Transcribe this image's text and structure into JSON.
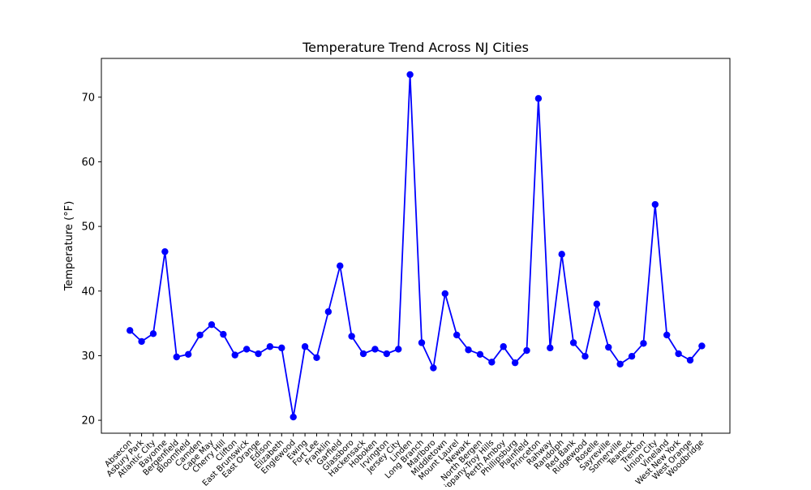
{
  "chart_data": {
    "type": "line",
    "title": "Temperature Trend Across NJ Cities",
    "xlabel": "",
    "ylabel": "Temperature (°F)",
    "ylim": [
      18,
      76
    ],
    "yticks": [
      20,
      30,
      40,
      50,
      60,
      70
    ],
    "grid": false,
    "marker": "circle",
    "colors": {
      "series": "#0000ff",
      "axis": "#000000",
      "background": "#ffffff"
    },
    "categories": [
      "Absecon",
      "Asbury Park",
      "Atlantic City",
      "Bayonne",
      "Bergenfield",
      "Bloomfield",
      "Camden",
      "Cape May",
      "Cherry Hill",
      "Clifton",
      "East Brunswick",
      "East Orange",
      "Edison",
      "Elizabeth",
      "Englewood",
      "Ewing",
      "Fort Lee",
      "Franklin",
      "Garfield",
      "Glassboro",
      "Hackensack",
      "Hoboken",
      "Irvington",
      "Jersey City",
      "Linden",
      "Long Branch",
      "Marlboro",
      "Middletown",
      "Mount Laurel",
      "Newark",
      "North Bergen",
      "Parsippany-Troy Hills",
      "Perth Amboy",
      "Phillipsburg",
      "Plainfield",
      "Princeton",
      "Rahway",
      "Randolph",
      "Red Bank",
      "Ridgewood",
      "Roselle",
      "Sayreville",
      "Somerville",
      "Teaneck",
      "Trenton",
      "Union City",
      "Vineland",
      "West New York",
      "West Orange",
      "Woodbridge"
    ],
    "series": [
      {
        "name": "",
        "values": [
          33.9,
          32.2,
          33.4,
          46.1,
          29.8,
          30.2,
          33.2,
          34.8,
          33.3,
          30.1,
          31.0,
          30.3,
          31.4,
          31.2,
          20.5,
          31.4,
          29.7,
          36.8,
          43.9,
          33.0,
          30.3,
          31.0,
          30.3,
          31.0,
          73.5,
          32.0,
          28.1,
          39.6,
          33.2,
          30.9,
          30.2,
          29.0,
          31.4,
          28.9,
          30.8,
          69.8,
          31.2,
          45.7,
          32.0,
          29.9,
          38.0,
          31.3,
          28.7,
          29.9,
          31.9,
          53.4,
          33.2,
          30.3,
          29.3,
          31.5
        ]
      }
    ]
  }
}
